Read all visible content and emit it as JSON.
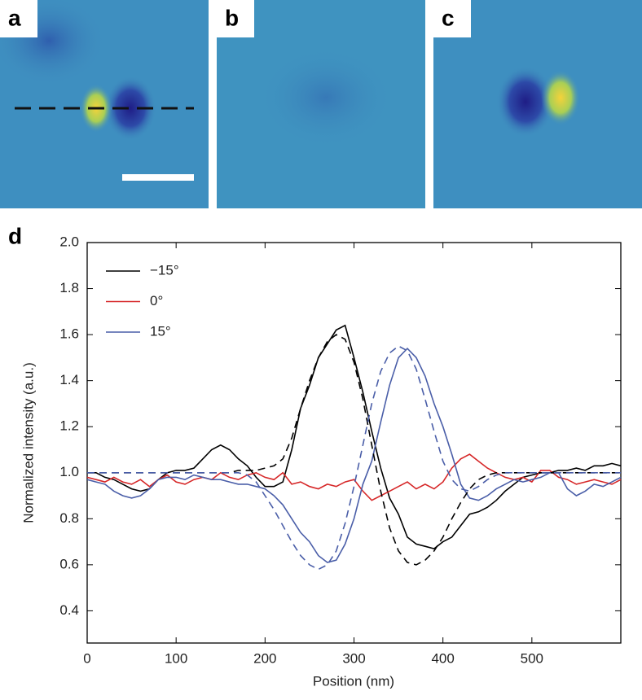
{
  "panel_labels": [
    "a",
    "b",
    "c",
    "d"
  ],
  "chart_data": {
    "type": "line",
    "xlabel": "Position (nm)",
    "ylabel": "Normalized intensity (a.u.)",
    "x": [
      0,
      10,
      20,
      30,
      40,
      50,
      60,
      70,
      80,
      90,
      100,
      110,
      120,
      130,
      140,
      150,
      160,
      170,
      180,
      190,
      200,
      210,
      220,
      230,
      240,
      250,
      260,
      270,
      280,
      290,
      300,
      310,
      320,
      330,
      340,
      350,
      360,
      370,
      380,
      390,
      400,
      410,
      420,
      430,
      440,
      450,
      460,
      470,
      480,
      490,
      500,
      510,
      520,
      530,
      540,
      550,
      560,
      570,
      580,
      590,
      600
    ],
    "xlim": [
      0,
      600
    ],
    "xticks": [
      0,
      100,
      200,
      300,
      400,
      500
    ],
    "ylim": [
      0.26,
      2.0
    ],
    "yticks": [
      0.4,
      0.6,
      0.8,
      {
        "value": 1,
        "label": "1.0"
      },
      1.2,
      1.4,
      1.6,
      1.8,
      {
        "value": 2,
        "label": "2.0"
      }
    ],
    "legend": "upper left",
    "series": [
      {
        "name": "−15°",
        "color": "#000000",
        "values": [
          1.0,
          1.0,
          0.98,
          0.97,
          0.95,
          0.93,
          0.92,
          0.93,
          0.97,
          1.0,
          1.01,
          1.01,
          1.02,
          1.06,
          1.1,
          1.12,
          1.1,
          1.06,
          1.03,
          0.98,
          0.94,
          0.94,
          0.96,
          1.1,
          1.28,
          1.38,
          1.5,
          1.56,
          1.62,
          1.64,
          1.5,
          1.35,
          1.18,
          1.02,
          0.89,
          0.82,
          0.72,
          0.69,
          0.68,
          0.67,
          0.7,
          0.72,
          0.77,
          0.82,
          0.83,
          0.85,
          0.88,
          0.92,
          0.95,
          0.98,
          0.99,
          1.0,
          1.0,
          1.01,
          1.01,
          1.02,
          1.01,
          1.03,
          1.03,
          1.04,
          1.03
        ]
      },
      {
        "name": "0°",
        "color": "#d62728",
        "values": [
          0.98,
          0.97,
          0.96,
          0.98,
          0.96,
          0.95,
          0.97,
          0.94,
          0.97,
          0.99,
          0.96,
          0.95,
          0.97,
          0.98,
          0.97,
          1.0,
          0.98,
          0.97,
          0.99,
          1.0,
          0.98,
          0.97,
          1.0,
          0.95,
          0.96,
          0.94,
          0.93,
          0.95,
          0.94,
          0.96,
          0.97,
          0.92,
          0.88,
          0.9,
          0.92,
          0.94,
          0.96,
          0.93,
          0.95,
          0.93,
          0.96,
          1.02,
          1.06,
          1.08,
          1.05,
          1.02,
          1.0,
          0.98,
          0.97,
          0.98,
          0.96,
          1.01,
          1.01,
          0.98,
          0.97,
          0.95,
          0.96,
          0.97,
          0.96,
          0.95,
          0.97
        ]
      },
      {
        "name": "15°",
        "color": "#4a5ea8",
        "values": [
          0.97,
          0.96,
          0.95,
          0.92,
          0.9,
          0.89,
          0.9,
          0.93,
          0.97,
          0.98,
          0.98,
          0.97,
          0.99,
          0.98,
          0.97,
          0.97,
          0.96,
          0.95,
          0.95,
          0.94,
          0.93,
          0.9,
          0.86,
          0.8,
          0.74,
          0.7,
          0.64,
          0.61,
          0.62,
          0.69,
          0.8,
          0.95,
          1.05,
          1.22,
          1.38,
          1.5,
          1.54,
          1.5,
          1.42,
          1.3,
          1.2,
          1.08,
          0.95,
          0.89,
          0.88,
          0.9,
          0.93,
          0.95,
          0.97,
          0.96,
          0.97,
          0.98,
          1.0,
          1.0,
          0.93,
          0.9,
          0.92,
          0.95,
          0.94,
          0.96,
          0.98
        ]
      },
      {
        "color": "#000000",
        "dash": true,
        "values": [
          1.0,
          1.0,
          1.0,
          1.0,
          1.0,
          1.0,
          1.0,
          1.0,
          1.0,
          1.0,
          1.0,
          1.0,
          1.0,
          1.0,
          1.0,
          1.0,
          1.0,
          1.01,
          1.01,
          1.01,
          1.02,
          1.03,
          1.06,
          1.15,
          1.28,
          1.4,
          1.5,
          1.57,
          1.6,
          1.58,
          1.48,
          1.32,
          1.12,
          0.92,
          0.76,
          0.66,
          0.61,
          0.6,
          0.62,
          0.66,
          0.72,
          0.8,
          0.87,
          0.93,
          0.97,
          0.99,
          1.0,
          1.0,
          1.0,
          1.0,
          1.0,
          1.0,
          1.0,
          1.0,
          1.0,
          1.0,
          1.0,
          1.0,
          1.0,
          1.0,
          1.0
        ]
      },
      {
        "color": "#4a5ea8",
        "dash": true,
        "values": [
          1.0,
          1.0,
          1.0,
          1.0,
          1.0,
          1.0,
          1.0,
          1.0,
          1.0,
          1.0,
          1.0,
          1.0,
          1.0,
          1.0,
          1.0,
          1.0,
          1.0,
          1.0,
          0.99,
          0.96,
          0.9,
          0.84,
          0.77,
          0.7,
          0.64,
          0.6,
          0.58,
          0.6,
          0.66,
          0.78,
          0.94,
          1.12,
          1.3,
          1.44,
          1.52,
          1.55,
          1.53,
          1.45,
          1.32,
          1.18,
          1.05,
          0.97,
          0.93,
          0.92,
          0.94,
          0.97,
          0.99,
          1.0,
          1.0,
          1.0,
          1.0,
          1.0,
          1.0,
          1.0,
          1.0,
          1.0,
          1.0,
          1.0,
          1.0,
          1.0,
          1.0
        ]
      }
    ]
  }
}
